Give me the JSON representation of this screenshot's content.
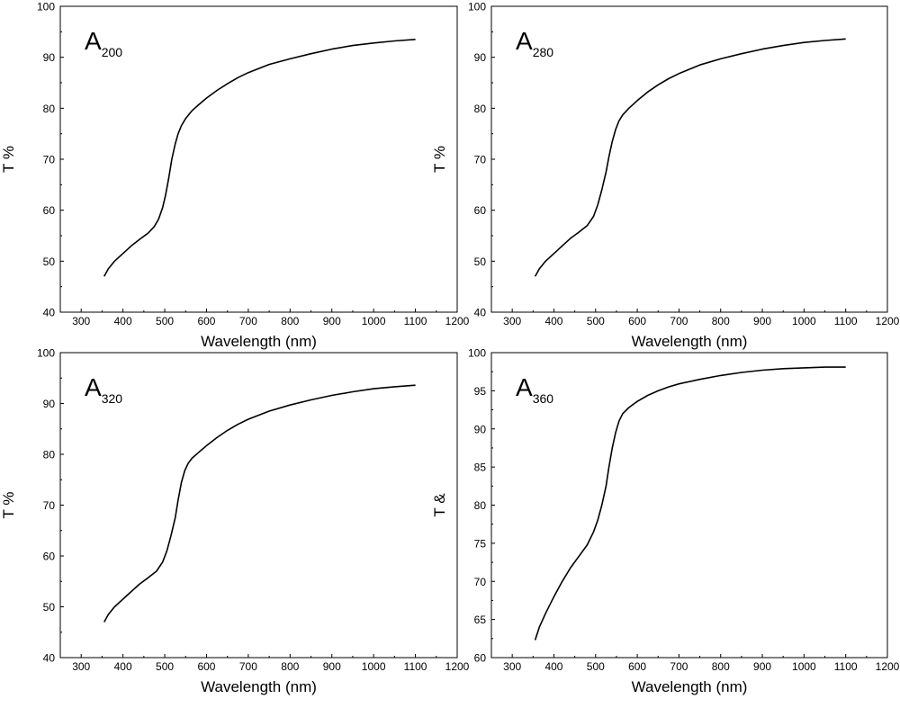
{
  "chart_data": [
    {
      "type": "line",
      "panel": "A200",
      "label_main": "A",
      "label_sub": "200",
      "xlabel": "Wavelength (nm)",
      "ylabel": "T %",
      "xlim": [
        250,
        1200
      ],
      "ylim": [
        40,
        100
      ],
      "xticks": [
        300,
        400,
        500,
        600,
        700,
        800,
        900,
        1000,
        1100,
        1200
      ],
      "yticks": [
        40,
        50,
        60,
        70,
        80,
        90,
        100
      ],
      "series": [
        {
          "name": "A200",
          "x": [
            355,
            365,
            380,
            400,
            420,
            440,
            460,
            475,
            485,
            495,
            502,
            510,
            517,
            525,
            532,
            540,
            550,
            565,
            580,
            600,
            625,
            650,
            675,
            700,
            750,
            800,
            850,
            900,
            950,
            1000,
            1050,
            1100
          ],
          "y": [
            47.0,
            48.5,
            50.0,
            51.5,
            53.0,
            54.3,
            55.5,
            56.8,
            58.2,
            60.5,
            63.0,
            66.5,
            70.0,
            73.0,
            75.0,
            76.6,
            78.0,
            79.5,
            80.6,
            82.0,
            83.5,
            84.8,
            86.0,
            87.0,
            88.6,
            89.7,
            90.7,
            91.6,
            92.3,
            92.8,
            93.2,
            93.5
          ]
        }
      ]
    },
    {
      "type": "line",
      "panel": "A280",
      "label_main": "A",
      "label_sub": "280",
      "xlabel": "Wavelength (nm)",
      "ylabel": "T %",
      "xlim": [
        250,
        1200
      ],
      "ylim": [
        40,
        100
      ],
      "xticks": [
        300,
        400,
        500,
        600,
        700,
        800,
        900,
        1000,
        1100,
        1200
      ],
      "yticks": [
        40,
        50,
        60,
        70,
        80,
        90,
        100
      ],
      "series": [
        {
          "name": "A280",
          "x": [
            355,
            365,
            380,
            400,
            420,
            440,
            460,
            480,
            495,
            505,
            515,
            525,
            532,
            540,
            548,
            556,
            565,
            580,
            600,
            625,
            650,
            675,
            700,
            750,
            800,
            850,
            900,
            950,
            1000,
            1050,
            1100
          ],
          "y": [
            47.0,
            48.5,
            50.0,
            51.5,
            53.0,
            54.5,
            55.7,
            57.0,
            58.8,
            61.0,
            64.0,
            67.5,
            70.5,
            73.5,
            75.8,
            77.5,
            78.7,
            80.0,
            81.5,
            83.2,
            84.6,
            85.8,
            86.8,
            88.5,
            89.7,
            90.7,
            91.6,
            92.3,
            92.9,
            93.3,
            93.6
          ]
        }
      ]
    },
    {
      "type": "line",
      "panel": "A320",
      "label_main": "A",
      "label_sub": "320",
      "xlabel": "Wavelength (nm)",
      "ylabel": "T %",
      "xlim": [
        250,
        1200
      ],
      "ylim": [
        40,
        100
      ],
      "xticks": [
        300,
        400,
        500,
        600,
        700,
        800,
        900,
        1000,
        1100,
        1200
      ],
      "yticks": [
        40,
        50,
        60,
        70,
        80,
        90,
        100
      ],
      "series": [
        {
          "name": "A320",
          "x": [
            355,
            365,
            380,
            400,
            420,
            440,
            460,
            480,
            495,
            505,
            515,
            525,
            532,
            540,
            548,
            556,
            565,
            580,
            600,
            625,
            650,
            675,
            700,
            750,
            800,
            850,
            900,
            950,
            1000,
            1050,
            1100
          ],
          "y": [
            47.0,
            48.5,
            50.0,
            51.5,
            53.0,
            54.5,
            55.7,
            57.0,
            58.8,
            61.0,
            64.0,
            67.5,
            71.0,
            74.5,
            76.8,
            78.2,
            79.2,
            80.3,
            81.7,
            83.3,
            84.7,
            85.9,
            86.9,
            88.5,
            89.7,
            90.7,
            91.6,
            92.3,
            92.9,
            93.3,
            93.6
          ]
        }
      ]
    },
    {
      "type": "line",
      "panel": "A360",
      "label_main": "A",
      "label_sub": "360",
      "xlabel": "Wavelength (nm)",
      "ylabel": "T &",
      "xlim": [
        250,
        1200
      ],
      "ylim": [
        60,
        100
      ],
      "xticks": [
        300,
        400,
        500,
        600,
        700,
        800,
        900,
        1000,
        1100,
        1200
      ],
      "yticks": [
        60,
        65,
        70,
        75,
        80,
        85,
        90,
        95,
        100
      ],
      "series": [
        {
          "name": "A360",
          "x": [
            355,
            365,
            380,
            400,
            420,
            440,
            460,
            480,
            495,
            505,
            515,
            525,
            532,
            540,
            548,
            556,
            565,
            580,
            600,
            625,
            650,
            675,
            700,
            750,
            800,
            850,
            900,
            950,
            1000,
            1050,
            1100
          ],
          "y": [
            62.3,
            64.0,
            65.8,
            68.0,
            70.0,
            71.8,
            73.3,
            74.8,
            76.5,
            78.0,
            80.0,
            82.5,
            85.0,
            87.5,
            89.5,
            91.0,
            92.0,
            92.8,
            93.6,
            94.4,
            95.0,
            95.5,
            95.9,
            96.5,
            97.0,
            97.4,
            97.7,
            97.9,
            98.0,
            98.1,
            98.1
          ]
        }
      ]
    }
  ]
}
